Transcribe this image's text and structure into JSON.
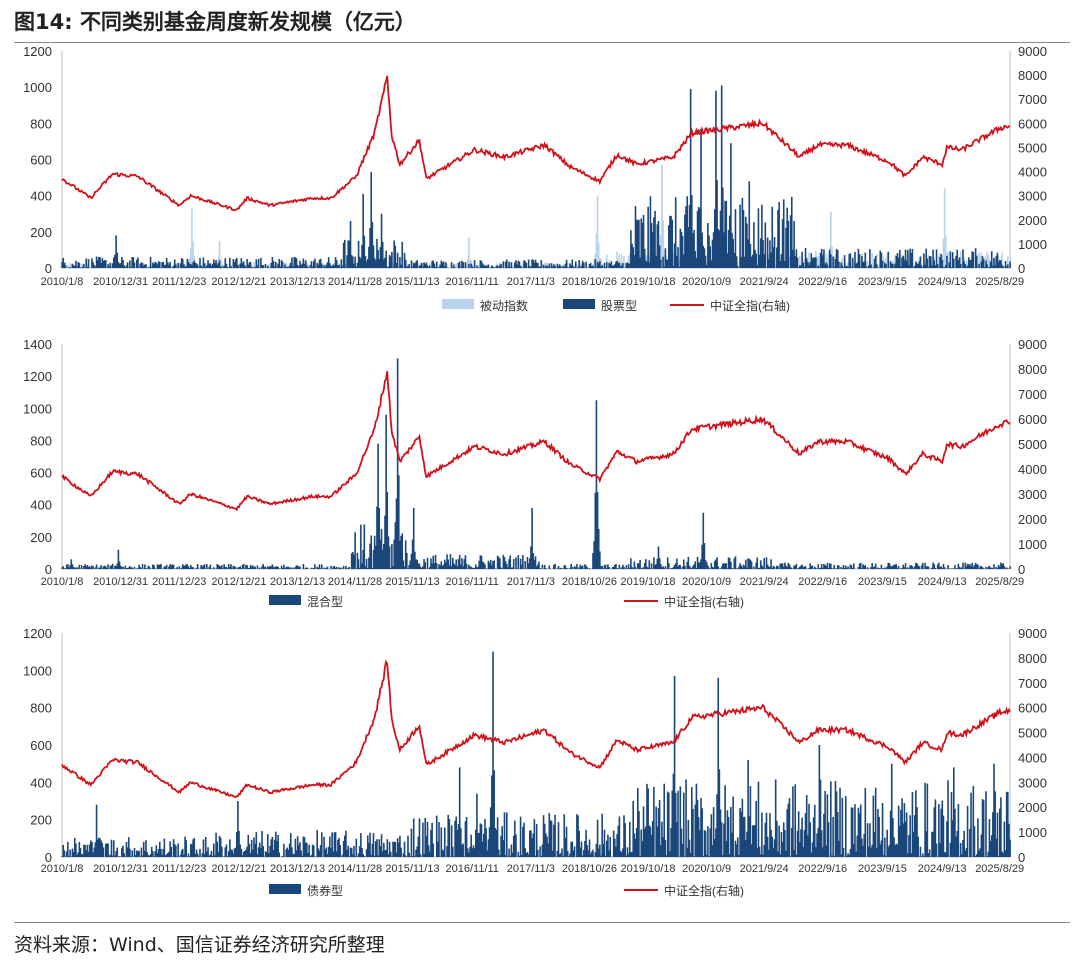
{
  "title": {
    "label": "图14:",
    "text": "不同类别基金周度新发规模（亿元）"
  },
  "source": "资料来源：Wind、国信证券经济研究所整理",
  "colors": {
    "passive": "#b9d3ec",
    "fund": "#1a477a",
    "index": "#d0121b",
    "axis": "#bfbfbf"
  },
  "x_ticks": [
    "2010/1/8",
    "2010/12/31",
    "2011/12/23",
    "2012/12/21",
    "2013/12/13",
    "2014/11/28",
    "2015/11/13",
    "2016/11/11",
    "2017/11/3",
    "2018/10/26",
    "2019/10/18",
    "2020/10/9",
    "2021/9/24",
    "2022/9/16",
    "2023/9/15",
    "2024/9/13",
    "2025/8/29"
  ],
  "index_series": {
    "name": "中证全指(右轴)",
    "points": [
      [
        "2010/1/8",
        3700
      ],
      [
        "2010/7/2",
        2900
      ],
      [
        "2010/11/12",
        3900
      ],
      [
        "2011/4/15",
        3800
      ],
      [
        "2011/12/23",
        2600
      ],
      [
        "2012/3/2",
        3000
      ],
      [
        "2012/12/7",
        2400
      ],
      [
        "2013/2/8",
        2900
      ],
      [
        "2013/6/28",
        2600
      ],
      [
        "2014/3/14",
        2900
      ],
      [
        "2014/7/4",
        2900
      ],
      [
        "2014/12/5",
        3800
      ],
      [
        "2015/3/27",
        5600
      ],
      [
        "2015/6/12",
        7900
      ],
      [
        "2015/7/10",
        5500
      ],
      [
        "2015/8/28",
        4300
      ],
      [
        "2015/12/25",
        5300
      ],
      [
        "2016/2/5",
        3700
      ],
      [
        "2016/11/25",
        4900
      ],
      [
        "2017/5/26",
        4600
      ],
      [
        "2018/1/26",
        5100
      ],
      [
        "2018/6/29",
        4200
      ],
      [
        "2018/12/28",
        3600
      ],
      [
        "2019/4/12",
        4700
      ],
      [
        "2019/8/9",
        4300
      ],
      [
        "2020/3/20",
        4600
      ],
      [
        "2020/7/10",
        5600
      ],
      [
        "2021/2/12",
        5800
      ],
      [
        "2021/9/17",
        6000
      ],
      [
        "2022/4/29",
        4600
      ],
      [
        "2022/8/19",
        5100
      ],
      [
        "2023/2/10",
        5100
      ],
      [
        "2023/10/27",
        4400
      ],
      [
        "2024/2/2",
        3800
      ],
      [
        "2024/5/17",
        4600
      ],
      [
        "2024/9/13",
        4300
      ],
      [
        "2024/10/11",
        5000
      ],
      [
        "2025/1/10",
        4900
      ],
      [
        "2025/8/29",
        5800
      ],
      [
        "2025/10/31",
        5900
      ]
    ]
  },
  "chart_data": [
    {
      "type": "bar",
      "title": "",
      "yticks_left": [
        "0",
        "200",
        "400",
        "600",
        "800",
        "1000",
        "1200"
      ],
      "yticks_right": [
        "0",
        "1000",
        "2000",
        "3000",
        "4000",
        "5000",
        "6000",
        "7000",
        "8000",
        "9000"
      ],
      "ylim": [
        0,
        1200
      ],
      "ylim_right": [
        0,
        9000
      ],
      "legend": [
        "被动指数",
        "股票型",
        "中证全指(右轴)"
      ],
      "series": [
        {
          "name": "被动指数",
          "kind": "passive",
          "spikes": [
            [
              "2012/3/9",
              330
            ],
            [
              "2012/8/24",
              150
            ],
            [
              "2016/10/21",
              170
            ],
            [
              "2018/12/14",
              400
            ],
            [
              "2020/1/10",
              570
            ],
            [
              "2022/11/4",
              310
            ],
            [
              "2024/9/27",
              440
            ]
          ]
        },
        {
          "name": "股票型",
          "kind": "fund",
          "spikes": [
            [
              "2010/12/3",
              180
            ],
            [
              "2014/10/31",
              260
            ],
            [
              "2015/1/16",
              410
            ],
            [
              "2015/3/6",
              530
            ],
            [
              "2015/5/8",
              300
            ],
            [
              "2019/11/22",
              280
            ],
            [
              "2020/7/3",
              990
            ],
            [
              "2020/9/4",
              770
            ],
            [
              "2020/12/4",
              980
            ],
            [
              "2021/1/8",
              1010
            ],
            [
              "2021/3/5",
              690
            ],
            [
              "2021/6/25",
              480
            ],
            [
              "2021/9/10",
              350
            ],
            [
              "2022/1/14",
              270
            ]
          ]
        }
      ]
    },
    {
      "type": "bar",
      "title": "",
      "yticks_left": [
        "0",
        "200",
        "400",
        "600",
        "800",
        "1000",
        "1200",
        "1400"
      ],
      "yticks_right": [
        "0",
        "1000",
        "2000",
        "3000",
        "4000",
        "5000",
        "6000",
        "7000",
        "8000",
        "9000"
      ],
      "ylim": [
        0,
        1400
      ],
      "ylim_right": [
        0,
        9000
      ],
      "legend": [
        "混合型",
        "中证全指(右轴)"
      ],
      "series": [
        {
          "name": "混合型",
          "kind": "fund",
          "spikes": [
            [
              "2010/3/5",
              60
            ],
            [
              "2010/12/17",
              120
            ],
            [
              "2015/4/17",
              780
            ],
            [
              "2015/6/5",
              960
            ],
            [
              "2015/8/14",
              1310
            ],
            [
              "2015/11/20",
              380
            ],
            [
              "2017/11/10",
              380
            ],
            [
              "2018/12/7",
              1050
            ],
            [
              "2019/12/20",
              140
            ],
            [
              "2020/9/18",
              350
            ]
          ]
        }
      ]
    },
    {
      "type": "bar",
      "title": "",
      "yticks_left": [
        "0",
        "200",
        "400",
        "600",
        "800",
        "1000",
        "1200"
      ],
      "yticks_right": [
        "0",
        "1000",
        "2000",
        "3000",
        "4000",
        "5000",
        "6000",
        "7000",
        "8000",
        "9000"
      ],
      "ylim": [
        0,
        1200
      ],
      "ylim_right": [
        0,
        9000
      ],
      "legend": [
        "债券型",
        "中证全指(右轴)"
      ],
      "series": [
        {
          "name": "债券型",
          "kind": "fund",
          "spikes": [
            [
              "2010/8/6",
              280
            ],
            [
              "2012/12/14",
              300
            ],
            [
              "2016/8/26",
              480
            ],
            [
              "2016/12/9",
              340
            ],
            [
              "2017/3/17",
              1100
            ],
            [
              "2020/3/27",
              970
            ],
            [
              "2020/12/18",
              960
            ],
            [
              "2021/6/18",
              520
            ],
            [
              "2022/8/26",
              600
            ],
            [
              "2023/11/10",
              500
            ],
            [
              "2024/11/22",
              480
            ],
            [
              "2025/7/25",
              500
            ]
          ]
        }
      ]
    }
  ]
}
